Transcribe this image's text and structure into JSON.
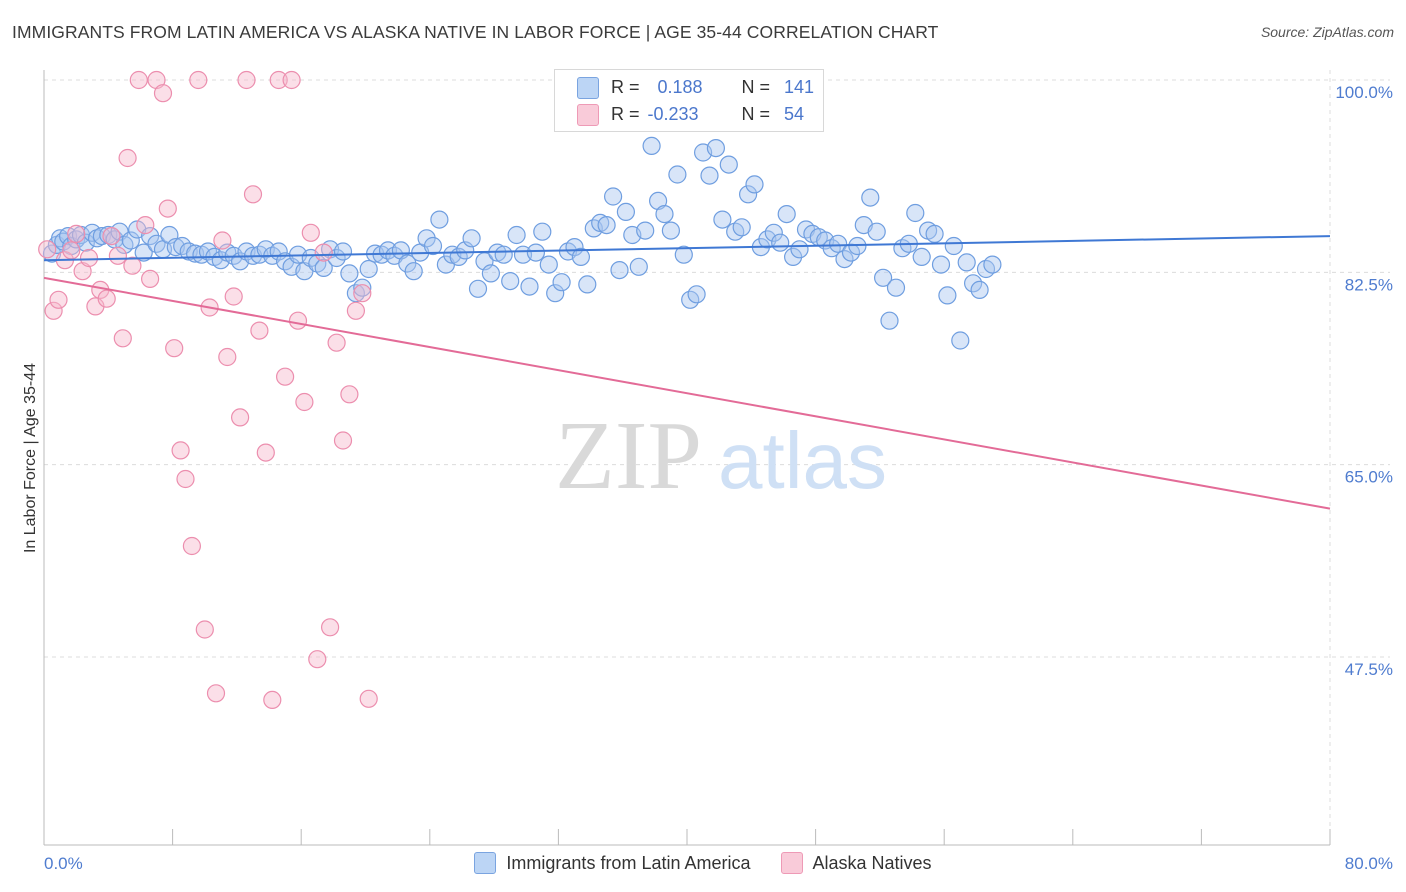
{
  "title": "IMMIGRANTS FROM LATIN AMERICA VS ALASKA NATIVE IN LABOR FORCE | AGE 35-44 CORRELATION CHART",
  "source": "Source: ZipAtlas.com",
  "watermark": {
    "zip": "ZIP",
    "atlas": "atlas"
  },
  "stats": [
    {
      "r_label": "R =",
      "r_value": "0.188",
      "n_label": "N =",
      "n_value": "141",
      "color": "#a8c6f0"
    },
    {
      "r_label": "R =",
      "r_value": "-0.233",
      "n_label": "N =",
      "n_value": "54",
      "color": "#f6b8cc"
    }
  ],
  "chart_data": {
    "type": "scatter",
    "title": "IMMIGRANTS FROM LATIN AMERICA VS ALASKA NATIVE IN LABOR FORCE | AGE 35-44 CORRELATION CHART",
    "xlabel": "",
    "ylabel": "In Labor Force | Age 35-44",
    "xlim": [
      0,
      80
    ],
    "ylim": [
      30,
      100
    ],
    "x_tick_labels": [
      "0.0%",
      "80.0%"
    ],
    "y_ticks": [
      47.5,
      65.0,
      82.5,
      100.0
    ],
    "y_tick_labels": [
      "47.5%",
      "65.0%",
      "82.5%",
      "100.0%"
    ],
    "grid": true,
    "legend": "bottom-center",
    "series": [
      {
        "name": "Immigrants from Latin America",
        "color": "#a8c6f0",
        "stroke": "#6f9ee0",
        "trend_color": "#3f78d4",
        "trend": [
          [
            0,
            83.6
          ],
          [
            80,
            85.8
          ]
        ],
        "points": [
          [
            0.5,
            84.2
          ],
          [
            0.8,
            85.0
          ],
          [
            1.0,
            85.6
          ],
          [
            1.2,
            85.3
          ],
          [
            1.5,
            85.8
          ],
          [
            1.7,
            84.9
          ],
          [
            2.0,
            85.5
          ],
          [
            2.3,
            85.9
          ],
          [
            2.6,
            85.2
          ],
          [
            3.0,
            86.1
          ],
          [
            3.3,
            85.6
          ],
          [
            3.6,
            85.8
          ],
          [
            4.0,
            85.9
          ],
          [
            4.4,
            85.5
          ],
          [
            4.7,
            86.2
          ],
          [
            5.0,
            85.0
          ],
          [
            5.4,
            85.4
          ],
          [
            5.8,
            86.4
          ],
          [
            6.2,
            84.3
          ],
          [
            6.6,
            85.8
          ],
          [
            7.0,
            85.1
          ],
          [
            7.4,
            84.6
          ],
          [
            7.8,
            85.9
          ],
          [
            8.2,
            84.8
          ],
          [
            8.6,
            84.9
          ],
          [
            9.0,
            84.4
          ],
          [
            9.4,
            84.2
          ],
          [
            9.8,
            84.1
          ],
          [
            10.2,
            84.4
          ],
          [
            10.6,
            83.9
          ],
          [
            11.0,
            83.6
          ],
          [
            11.4,
            84.3
          ],
          [
            11.8,
            84.0
          ],
          [
            12.2,
            83.5
          ],
          [
            12.6,
            84.4
          ],
          [
            13.0,
            84.0
          ],
          [
            13.4,
            84.1
          ],
          [
            13.8,
            84.6
          ],
          [
            14.2,
            84.0
          ],
          [
            14.6,
            84.4
          ],
          [
            15.0,
            83.5
          ],
          [
            15.4,
            83.0
          ],
          [
            15.8,
            84.1
          ],
          [
            16.2,
            82.6
          ],
          [
            16.6,
            83.8
          ],
          [
            17.0,
            83.3
          ],
          [
            17.4,
            82.9
          ],
          [
            17.8,
            84.6
          ],
          [
            18.2,
            83.8
          ],
          [
            18.6,
            84.4
          ],
          [
            19.0,
            82.4
          ],
          [
            19.4,
            80.6
          ],
          [
            19.8,
            81.1
          ],
          [
            20.2,
            82.8
          ],
          [
            20.6,
            84.2
          ],
          [
            21.0,
            84.1
          ],
          [
            21.4,
            84.5
          ],
          [
            21.8,
            84.0
          ],
          [
            22.2,
            84.5
          ],
          [
            22.6,
            83.3
          ],
          [
            23.0,
            82.6
          ],
          [
            23.4,
            84.3
          ],
          [
            23.8,
            85.6
          ],
          [
            24.2,
            84.9
          ],
          [
            24.6,
            87.3
          ],
          [
            25.0,
            83.2
          ],
          [
            25.4,
            84.1
          ],
          [
            25.8,
            83.9
          ],
          [
            26.2,
            84.5
          ],
          [
            26.6,
            85.6
          ],
          [
            27.0,
            81.0
          ],
          [
            27.4,
            83.5
          ],
          [
            27.8,
            82.4
          ],
          [
            28.2,
            84.3
          ],
          [
            28.6,
            84.1
          ],
          [
            29.0,
            81.7
          ],
          [
            29.4,
            85.9
          ],
          [
            29.8,
            84.1
          ],
          [
            30.2,
            81.2
          ],
          [
            30.6,
            84.3
          ],
          [
            31.0,
            86.2
          ],
          [
            31.4,
            83.2
          ],
          [
            31.8,
            80.6
          ],
          [
            32.2,
            81.6
          ],
          [
            32.6,
            84.4
          ],
          [
            33.0,
            84.8
          ],
          [
            33.4,
            83.9
          ],
          [
            33.8,
            81.4
          ],
          [
            34.2,
            86.5
          ],
          [
            34.6,
            87.0
          ],
          [
            35.0,
            86.8
          ],
          [
            35.4,
            89.4
          ],
          [
            35.8,
            82.7
          ],
          [
            36.2,
            88.0
          ],
          [
            36.6,
            85.9
          ],
          [
            37.0,
            83.0
          ],
          [
            37.4,
            86.3
          ],
          [
            37.8,
            94.0
          ],
          [
            38.2,
            89.0
          ],
          [
            38.6,
            87.8
          ],
          [
            39.0,
            86.3
          ],
          [
            39.4,
            91.4
          ],
          [
            39.8,
            84.1
          ],
          [
            40.2,
            80.0
          ],
          [
            40.6,
            80.5
          ],
          [
            41.0,
            93.4
          ],
          [
            41.4,
            91.3
          ],
          [
            41.8,
            93.8
          ],
          [
            42.2,
            87.3
          ],
          [
            42.6,
            92.3
          ],
          [
            43.0,
            86.2
          ],
          [
            43.4,
            86.6
          ],
          [
            43.8,
            89.6
          ],
          [
            44.2,
            90.5
          ],
          [
            44.6,
            84.8
          ],
          [
            45.0,
            85.5
          ],
          [
            45.4,
            86.1
          ],
          [
            45.8,
            85.2
          ],
          [
            46.2,
            87.8
          ],
          [
            46.6,
            83.9
          ],
          [
            47.0,
            84.6
          ],
          [
            47.4,
            86.4
          ],
          [
            47.8,
            86.0
          ],
          [
            48.2,
            85.7
          ],
          [
            48.6,
            85.4
          ],
          [
            49.0,
            84.7
          ],
          [
            49.4,
            85.1
          ],
          [
            49.8,
            83.7
          ],
          [
            50.2,
            84.3
          ],
          [
            50.6,
            84.9
          ],
          [
            51.0,
            86.8
          ],
          [
            51.4,
            89.3
          ],
          [
            51.8,
            86.2
          ],
          [
            52.2,
            82.0
          ],
          [
            52.6,
            78.1
          ],
          [
            53.0,
            81.1
          ],
          [
            53.4,
            84.7
          ],
          [
            53.8,
            85.1
          ],
          [
            54.2,
            87.9
          ],
          [
            54.6,
            83.9
          ],
          [
            55.0,
            86.3
          ],
          [
            55.4,
            86.0
          ],
          [
            55.8,
            83.2
          ],
          [
            56.2,
            80.4
          ],
          [
            56.6,
            84.9
          ],
          [
            57.0,
            76.3
          ],
          [
            57.4,
            83.4
          ],
          [
            57.8,
            81.5
          ],
          [
            58.2,
            80.9
          ],
          [
            58.6,
            82.8
          ],
          [
            59.0,
            83.2
          ]
        ]
      },
      {
        "name": "Alaska Natives",
        "color": "#f6b8cc",
        "stroke": "#ec8eae",
        "trend_color": "#e36b97",
        "trend": [
          [
            0,
            82.0
          ],
          [
            80,
            61.0
          ]
        ],
        "points": [
          [
            0.2,
            84.6
          ],
          [
            0.6,
            79.0
          ],
          [
            0.9,
            80.0
          ],
          [
            1.3,
            83.6
          ],
          [
            1.7,
            84.5
          ],
          [
            2.0,
            86.0
          ],
          [
            2.4,
            82.6
          ],
          [
            2.8,
            83.8
          ],
          [
            3.2,
            79.4
          ],
          [
            3.5,
            80.9
          ],
          [
            3.9,
            80.1
          ],
          [
            4.2,
            85.8
          ],
          [
            4.6,
            84.0
          ],
          [
            4.9,
            76.5
          ],
          [
            5.2,
            92.9
          ],
          [
            5.5,
            83.1
          ],
          [
            5.9,
            100.0
          ],
          [
            6.3,
            86.8
          ],
          [
            6.6,
            81.9
          ],
          [
            7.0,
            100.0
          ],
          [
            7.4,
            98.8
          ],
          [
            7.7,
            88.3
          ],
          [
            8.1,
            75.6
          ],
          [
            8.5,
            66.3
          ],
          [
            8.8,
            63.7
          ],
          [
            9.2,
            57.6
          ],
          [
            9.6,
            100.0
          ],
          [
            10.0,
            50.0
          ],
          [
            10.3,
            79.3
          ],
          [
            10.7,
            44.2
          ],
          [
            11.1,
            85.4
          ],
          [
            11.4,
            74.8
          ],
          [
            11.8,
            80.3
          ],
          [
            12.2,
            69.3
          ],
          [
            12.6,
            100.0
          ],
          [
            13.0,
            89.6
          ],
          [
            13.4,
            77.2
          ],
          [
            13.8,
            66.1
          ],
          [
            14.2,
            43.6
          ],
          [
            14.6,
            100.0
          ],
          [
            15.0,
            73.0
          ],
          [
            15.4,
            100.0
          ],
          [
            15.8,
            78.1
          ],
          [
            16.2,
            70.7
          ],
          [
            16.6,
            86.1
          ],
          [
            17.0,
            47.3
          ],
          [
            17.4,
            84.3
          ],
          [
            17.8,
            50.2
          ],
          [
            18.2,
            76.1
          ],
          [
            18.6,
            67.2
          ],
          [
            19.0,
            71.4
          ],
          [
            19.4,
            79.0
          ],
          [
            19.8,
            80.6
          ],
          [
            20.2,
            43.7
          ]
        ]
      }
    ]
  }
}
